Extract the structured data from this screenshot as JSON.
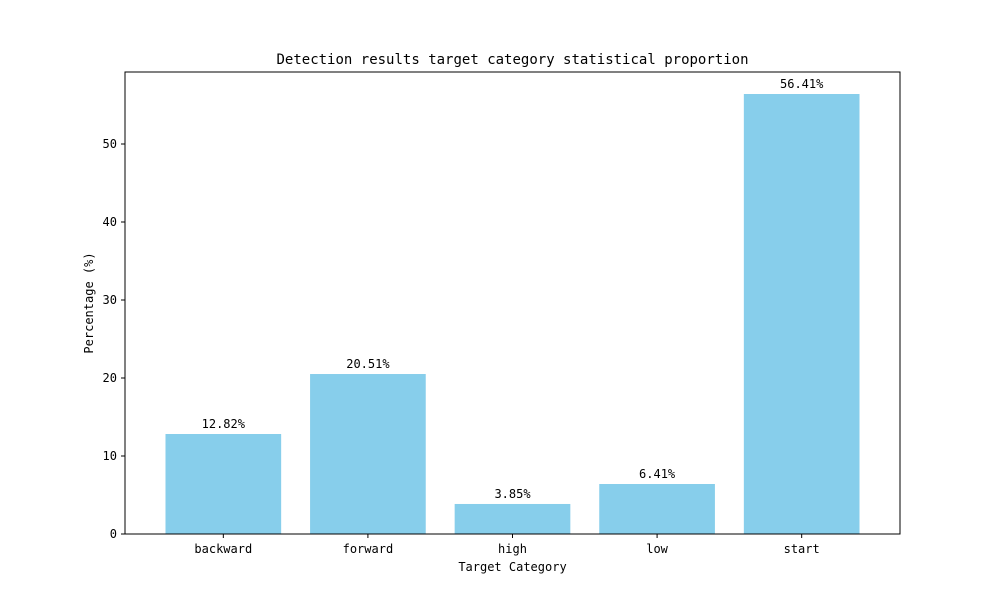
{
  "chart_data": {
    "type": "bar",
    "title": "Detection results target category statistical proportion",
    "xlabel": "Target Category",
    "ylabel": "Percentage (%)",
    "categories": [
      "backward",
      "forward",
      "high",
      "low",
      "start"
    ],
    "values": [
      12.82,
      20.51,
      3.85,
      6.41,
      56.41
    ],
    "value_labels": [
      "12.82%",
      "20.51%",
      "3.85%",
      "6.41%",
      "56.41%"
    ],
    "ylim": [
      0,
      59.23
    ],
    "yticks": [
      0,
      10,
      20,
      30,
      40,
      50
    ],
    "ytick_labels": [
      "0",
      "10",
      "20",
      "30",
      "40",
      "50"
    ],
    "bar_color": "#87CEEB",
    "grid": false,
    "legend": "none"
  }
}
